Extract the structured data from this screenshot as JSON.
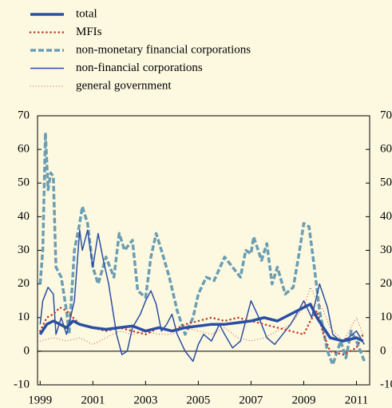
{
  "chart_data": {
    "type": "line",
    "xlim": [
      1998.9,
      2011.5
    ],
    "xticks": [
      1999,
      2001,
      2003,
      2005,
      2007,
      2009,
      2011
    ],
    "ylim": [
      -10,
      70
    ],
    "yticks": [
      -10,
      0,
      10,
      20,
      30,
      40,
      50,
      60,
      70
    ],
    "y2lim": [
      -10,
      70
    ],
    "y2ticks": [
      -10,
      0,
      10,
      20,
      30,
      40,
      50,
      60,
      70
    ],
    "legend": "top-left",
    "series": [
      {
        "name": "total",
        "color": "#2b4ea2",
        "style": "solid",
        "width": 3.5,
        "x": [
          1999,
          1999.25,
          1999.5,
          1999.75,
          2000,
          2000.25,
          2000.5,
          2000.75,
          2001,
          2001.5,
          2002,
          2002.5,
          2003,
          2003.5,
          2004,
          2004.5,
          2005,
          2005.5,
          2006,
          2006.5,
          2007,
          2007.5,
          2008,
          2008.5,
          2009,
          2009.25,
          2009.5,
          2009.75,
          2010,
          2010.5,
          2011,
          2011.25
        ],
        "values": [
          5,
          8,
          9,
          8,
          7,
          9,
          8,
          7.5,
          7,
          6.5,
          7,
          7.5,
          6,
          7,
          6,
          7,
          7.5,
          8,
          8,
          8.5,
          9,
          10,
          9,
          11,
          13,
          14,
          10,
          7,
          4,
          3,
          4,
          3
        ]
      },
      {
        "name": "MFIs",
        "color": "#c0392b",
        "style": "dotted",
        "width": 2.5,
        "x": [
          1999,
          1999.25,
          1999.5,
          1999.75,
          2000,
          2000.5,
          2001,
          2001.5,
          2002,
          2002.5,
          2003,
          2003.5,
          2004,
          2004.5,
          2005,
          2005.5,
          2006,
          2006.5,
          2007,
          2007.5,
          2008,
          2008.5,
          2009,
          2009.25,
          2009.5,
          2009.75,
          2010,
          2010.5,
          2011,
          2011.25
        ],
        "values": [
          6,
          10,
          11,
          13,
          12,
          8,
          7,
          6,
          7,
          6,
          5,
          7,
          6,
          8,
          9,
          10,
          9,
          10,
          9,
          8,
          7,
          6,
          5,
          9,
          12,
          5,
          0,
          -1,
          1,
          5
        ]
      },
      {
        "name": "non-monetary financial corporations",
        "color": "#6b9db3",
        "style": "dashed",
        "width": 3.5,
        "x": [
          1999,
          1999.1,
          1999.2,
          1999.3,
          1999.4,
          1999.5,
          1999.6,
          1999.8,
          2000,
          2000.1,
          2000.3,
          2000.5,
          2000.6,
          2000.8,
          2001,
          2001.2,
          2001.5,
          2001.8,
          2002,
          2002.2,
          2002.5,
          2002.7,
          2003,
          2003.2,
          2003.4,
          2003.6,
          2003.9,
          2004.2,
          2004.5,
          2004.8,
          2005,
          2005.3,
          2005.6,
          2006,
          2006.3,
          2006.6,
          2006.8,
          2007,
          2007.1,
          2007.4,
          2007.6,
          2007.8,
          2008,
          2008.3,
          2008.6,
          2008.8,
          2009,
          2009.2,
          2009.4,
          2009.6,
          2009.9,
          2010.1,
          2010.4,
          2010.6,
          2010.8,
          2011,
          2011.3
        ],
        "values": [
          20,
          30,
          65,
          48,
          53,
          52,
          25,
          22,
          12,
          5,
          30,
          38,
          43,
          38,
          25,
          20,
          28,
          22,
          35,
          30,
          33,
          18,
          16,
          28,
          35,
          30,
          22,
          12,
          5,
          10,
          17,
          22,
          21,
          28,
          25,
          22,
          30,
          29,
          34,
          27,
          32,
          20,
          25,
          17,
          19,
          28,
          38,
          37,
          25,
          12,
          0,
          -4,
          3,
          -2,
          6,
          3,
          -3
        ]
      },
      {
        "name": "non-financial corporations",
        "color": "#2b4ea2",
        "style": "solid",
        "width": 1.5,
        "x": [
          1999,
          1999.1,
          1999.3,
          1999.5,
          1999.6,
          1999.8,
          2000,
          2000.3,
          2000.5,
          2000.6,
          2000.8,
          2001,
          2001.2,
          2001.4,
          2001.6,
          2001.9,
          2002.1,
          2002.3,
          2002.5,
          2002.8,
          2003,
          2003.2,
          2003.4,
          2003.6,
          2003.8,
          2004,
          2004.2,
          2004.5,
          2004.8,
          2005,
          2005.2,
          2005.5,
          2005.8,
          2006,
          2006.3,
          2006.6,
          2006.9,
          2007,
          2007.3,
          2007.6,
          2007.9,
          2008.2,
          2008.5,
          2008.8,
          2009,
          2009.3,
          2009.6,
          2009.9,
          2010.1,
          2010.4,
          2010.7,
          2011,
          2011.3
        ],
        "values": [
          8,
          15,
          19,
          17,
          5,
          10,
          5,
          15,
          36,
          30,
          36,
          25,
          35,
          27,
          20,
          5,
          -1,
          0,
          7,
          11,
          15,
          18,
          14,
          6,
          8,
          11,
          5,
          0,
          -3,
          2,
          5,
          3,
          8,
          5,
          1,
          3,
          12,
          15,
          10,
          4,
          2,
          5,
          8,
          12,
          15,
          10,
          20,
          13,
          5,
          3,
          4,
          6,
          2
        ]
      },
      {
        "name": "general government",
        "color": "#c0392b",
        "style": "dotted",
        "width": 1,
        "x": [
          1999,
          1999.5,
          2000,
          2000.5,
          2001,
          2001.5,
          2002,
          2002.5,
          2003,
          2003.5,
          2004,
          2004.5,
          2005,
          2005.5,
          2006,
          2006.5,
          2007,
          2007.5,
          2008,
          2008.5,
          2009,
          2009.25,
          2009.5,
          2009.75,
          2010,
          2010.5,
          2011,
          2011.25
        ],
        "values": [
          3,
          4,
          3,
          4,
          2,
          4,
          6,
          5,
          6,
          5,
          5,
          7,
          6,
          5,
          7,
          4,
          3,
          4,
          6,
          8,
          13,
          19,
          15,
          12,
          7,
          3,
          10,
          5
        ]
      }
    ]
  }
}
